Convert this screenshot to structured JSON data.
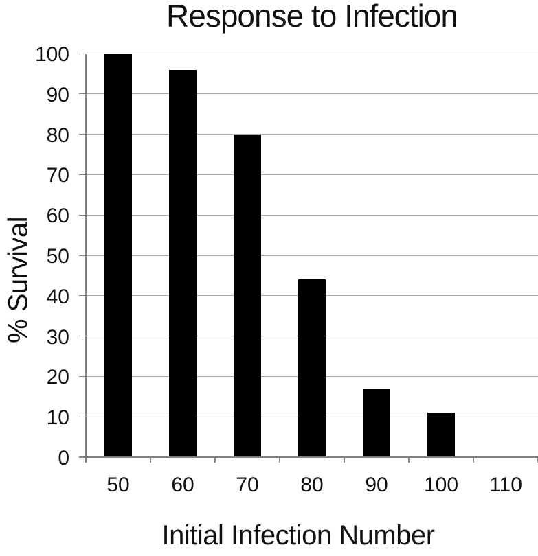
{
  "chart_data": {
    "type": "bar",
    "title": "Response to Infection",
    "xlabel": "Initial Infection Number",
    "ylabel": "% Survival",
    "categories": [
      "50",
      "60",
      "70",
      "80",
      "90",
      "100",
      "110"
    ],
    "values": [
      100,
      96,
      80,
      44,
      17,
      11,
      0
    ],
    "ylim": [
      0,
      100
    ],
    "yticks": [
      0,
      10,
      20,
      30,
      40,
      50,
      60,
      70,
      80,
      90,
      100
    ],
    "grid": "horizontal",
    "legend_position": "none",
    "colors": {
      "bar": "#000000",
      "gridline": "#a8a8a8",
      "axis": "#808080",
      "text": "#111111",
      "background": "#ffffff"
    }
  }
}
